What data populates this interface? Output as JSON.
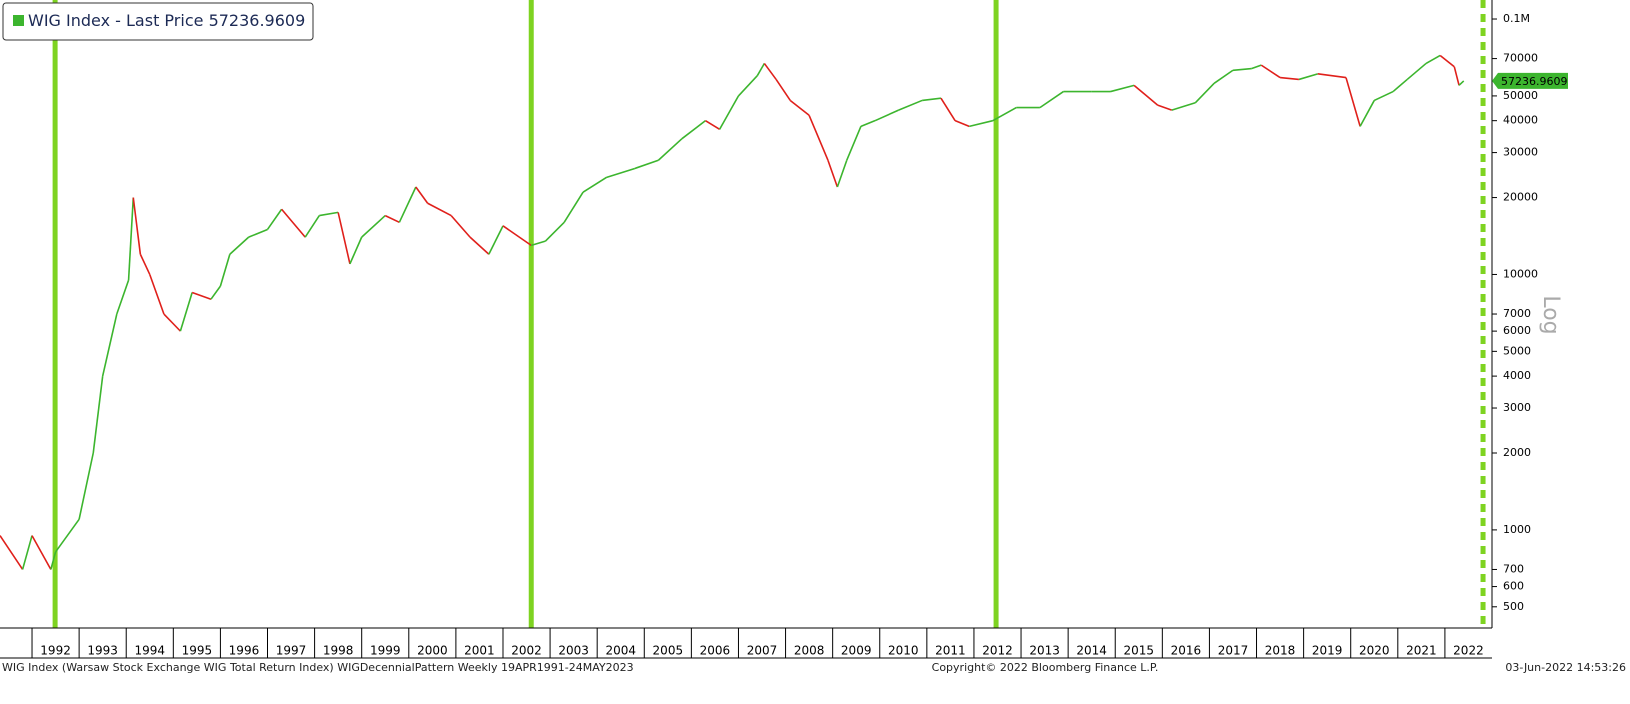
{
  "chart_data": {
    "type": "line",
    "legend": {
      "name": "WIG Index - Last Price",
      "value": 57236.9609
    },
    "last_price": 57236.9609,
    "axis_note": "Log",
    "footer": {
      "left": "WIG Index (Warsaw Stock Exchange WIG Total Return Index) WIGDecennialPattern  Weekly 19APR1991-24MAY2023",
      "center": "Copyright© 2022 Bloomberg Finance L.P.",
      "right": "03-Jun-2022 14:53:26"
    },
    "log_scale": true,
    "up_color": "#3cb52e",
    "down_color": "#e0201b",
    "highlight_color": "#7ed321",
    "highlight_x": [
      1992.49,
      2002.6,
      2012.47
    ],
    "current_x": 2022.81,
    "xlim": [
      1991.32,
      2023.0
    ],
    "xticks": [
      1992,
      1993,
      1994,
      1995,
      1996,
      1997,
      1998,
      1999,
      2000,
      2001,
      2002,
      2003,
      2004,
      2005,
      2006,
      2007,
      2008,
      2009,
      2010,
      2011,
      2012,
      2013,
      2014,
      2015,
      2016,
      2017,
      2018,
      2019,
      2020,
      2021,
      2022
    ],
    "ylim": [
      413,
      118700
    ],
    "yticks": [
      500,
      600,
      700,
      1000,
      2000,
      3000,
      4000,
      5000,
      6000,
      7000,
      10000,
      20000,
      30000,
      40000,
      50000,
      70000,
      {
        "value": 100000,
        "label": "0.1M"
      }
    ],
    "x": [
      1991.32,
      1991.8,
      1992.0,
      1992.4,
      1992.5,
      1993.0,
      1993.3,
      1993.5,
      1993.8,
      1994.05,
      1994.15,
      1994.3,
      1994.5,
      1994.8,
      1995.15,
      1995.4,
      1995.8,
      1996.0,
      1996.2,
      1996.6,
      1997.0,
      1997.3,
      1997.8,
      1998.1,
      1998.5,
      1998.75,
      1999.0,
      1999.5,
      1999.8,
      2000.15,
      2000.4,
      2000.9,
      2001.3,
      2001.7,
      2002.0,
      2002.6,
      2002.9,
      2003.3,
      2003.7,
      2004.2,
      2004.8,
      2005.3,
      2005.8,
      2006.3,
      2006.6,
      2007.0,
      2007.4,
      2007.55,
      2007.8,
      2008.1,
      2008.5,
      2008.9,
      2009.1,
      2009.3,
      2009.6,
      2009.9,
      2010.4,
      2010.9,
      2011.3,
      2011.6,
      2011.9,
      2012.4,
      2012.9,
      2013.4,
      2013.9,
      2014.5,
      2014.9,
      2015.4,
      2015.9,
      2016.2,
      2016.7,
      2017.1,
      2017.5,
      2017.9,
      2018.1,
      2018.5,
      2018.9,
      2019.3,
      2019.9,
      2020.2,
      2020.5,
      2020.9,
      2021.2,
      2021.6,
      2021.9,
      2022.2,
      2022.3,
      2022.4
    ],
    "values": [
      950,
      700,
      950,
      700,
      820,
      1100,
      2000,
      4000,
      7000,
      9500,
      20000,
      12000,
      10000,
      7000,
      6000,
      8500,
      8000,
      9000,
      12000,
      14000,
      15000,
      18000,
      14000,
      17000,
      17500,
      11000,
      14000,
      17000,
      16000,
      22000,
      19000,
      17000,
      14000,
      12000,
      15500,
      13000,
      13500,
      16000,
      21000,
      24000,
      26000,
      28000,
      34000,
      40000,
      37000,
      50000,
      60000,
      67000,
      58000,
      48000,
      42000,
      28000,
      22000,
      28000,
      38000,
      40000,
      44000,
      48000,
      49000,
      40000,
      38000,
      40000,
      45000,
      45000,
      52000,
      52000,
      52000,
      55000,
      46000,
      44000,
      47000,
      56000,
      63000,
      64000,
      66000,
      59000,
      58000,
      61000,
      59000,
      38000,
      48000,
      52000,
      58000,
      67000,
      72000,
      65000,
      55000,
      57236.9609
    ]
  }
}
